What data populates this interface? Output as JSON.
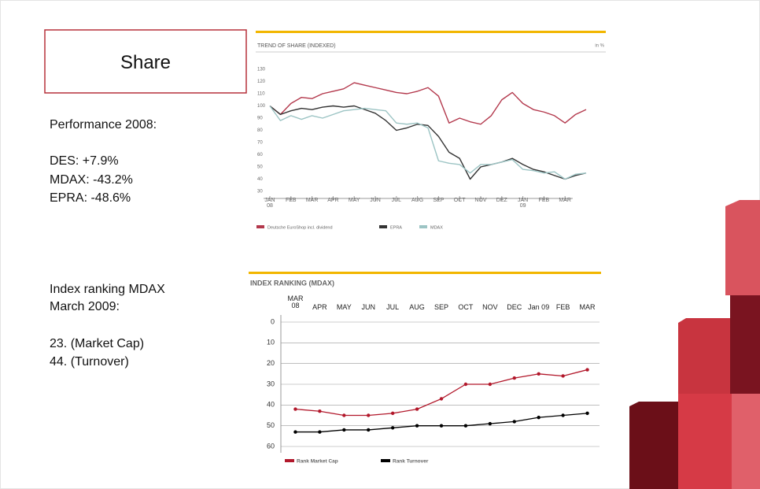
{
  "slide": {
    "title": "Share",
    "performance": [
      "Performance 2008:",
      "DES: +7.9%",
      "MDAX: -43.2%",
      "EPRA: -48.6%"
    ],
    "ranking": [
      "Index ranking MDAX",
      "March 2009:",
      "23. (Market Cap)",
      "44. (Turnover)"
    ]
  },
  "chart_data": [
    {
      "type": "line",
      "title": "TREND OF SHARE (INDEXED)",
      "unit_label": "in %",
      "x": [
        0,
        0.5,
        1,
        1.5,
        2,
        2.5,
        3,
        3.5,
        4,
        4.5,
        5,
        5.5,
        6,
        6.5,
        7,
        7.5,
        8,
        8.5,
        9,
        9.5,
        10,
        10.5,
        11,
        11.5,
        12,
        12.5,
        13,
        13.5,
        14,
        14.5,
        15
      ],
      "xlim": [
        0,
        15
      ],
      "xticks": [
        {
          "value": 0,
          "label": "JAN\n08"
        },
        {
          "value": 1,
          "label": "FEB"
        },
        {
          "value": 2,
          "label": "MAR"
        },
        {
          "value": 3,
          "label": "APR"
        },
        {
          "value": 4,
          "label": "MAY"
        },
        {
          "value": 5,
          "label": "JUN"
        },
        {
          "value": 6,
          "label": "JUL"
        },
        {
          "value": 7,
          "label": "AUG"
        },
        {
          "value": 8,
          "label": "SEP"
        },
        {
          "value": 9,
          "label": "OCT"
        },
        {
          "value": 10,
          "label": "NOV"
        },
        {
          "value": 11,
          "label": "DEZ"
        },
        {
          "value": 12,
          "label": "JAN\n09"
        },
        {
          "value": 13,
          "label": "FEB"
        },
        {
          "value": 14,
          "label": "MAR"
        }
      ],
      "ylim": [
        30,
        130
      ],
      "yticks": [
        30,
        40,
        50,
        60,
        70,
        80,
        90,
        100,
        110,
        120,
        130
      ],
      "legend": "bottom",
      "series": [
        {
          "name": "Deutsche EuroShop incl. dividend",
          "color": "#b3384c",
          "values": [
            100,
            93,
            102,
            107,
            106,
            110,
            112,
            114,
            119,
            117,
            115,
            113,
            111,
            110,
            112,
            115,
            108,
            86,
            90,
            87,
            85,
            92,
            105,
            111,
            102,
            97,
            95,
            92,
            86,
            93,
            97
          ]
        },
        {
          "name": "EPRA",
          "color": "#333333",
          "values": [
            100,
            93,
            96,
            98,
            97,
            99,
            100,
            99,
            100,
            97,
            94,
            88,
            80,
            82,
            85,
            84,
            75,
            62,
            57,
            40,
            50,
            52,
            54,
            57,
            52,
            48,
            46,
            43,
            40,
            43,
            45
          ]
        },
        {
          "name": "MDAX",
          "color": "#9cc4c4",
          "values": [
            100,
            88,
            92,
            89,
            92,
            90,
            93,
            96,
            97,
            98,
            97,
            96,
            86,
            85,
            86,
            82,
            55,
            53,
            52,
            45,
            52,
            52,
            54,
            56,
            48,
            47,
            45,
            46,
            40,
            44,
            45
          ]
        }
      ]
    },
    {
      "type": "line",
      "title": "INDEX RANKING (MDAX)",
      "categories": [
        "MAR\n08",
        "APR",
        "MAY",
        "JUN",
        "JUL",
        "AUG",
        "SEP",
        "OCT",
        "NOV",
        "DEC",
        "Jan 09",
        "FEB",
        "MAR"
      ],
      "ylim": [
        60,
        0
      ],
      "yticks": [
        0,
        10,
        20,
        30,
        40,
        50,
        60
      ],
      "grid": true,
      "legend": "bottom",
      "markers": true,
      "series": [
        {
          "name": "Rank Market Cap",
          "color": "#b2182b",
          "values": [
            42,
            43,
            45,
            45,
            44,
            42,
            37,
            30,
            30,
            27,
            25,
            26,
            23
          ]
        },
        {
          "name": "Rank Turnover",
          "color": "#000000",
          "values": [
            53,
            53,
            52,
            52,
            51,
            50,
            50,
            50,
            49,
            48,
            46,
            45,
            44
          ]
        }
      ]
    }
  ]
}
